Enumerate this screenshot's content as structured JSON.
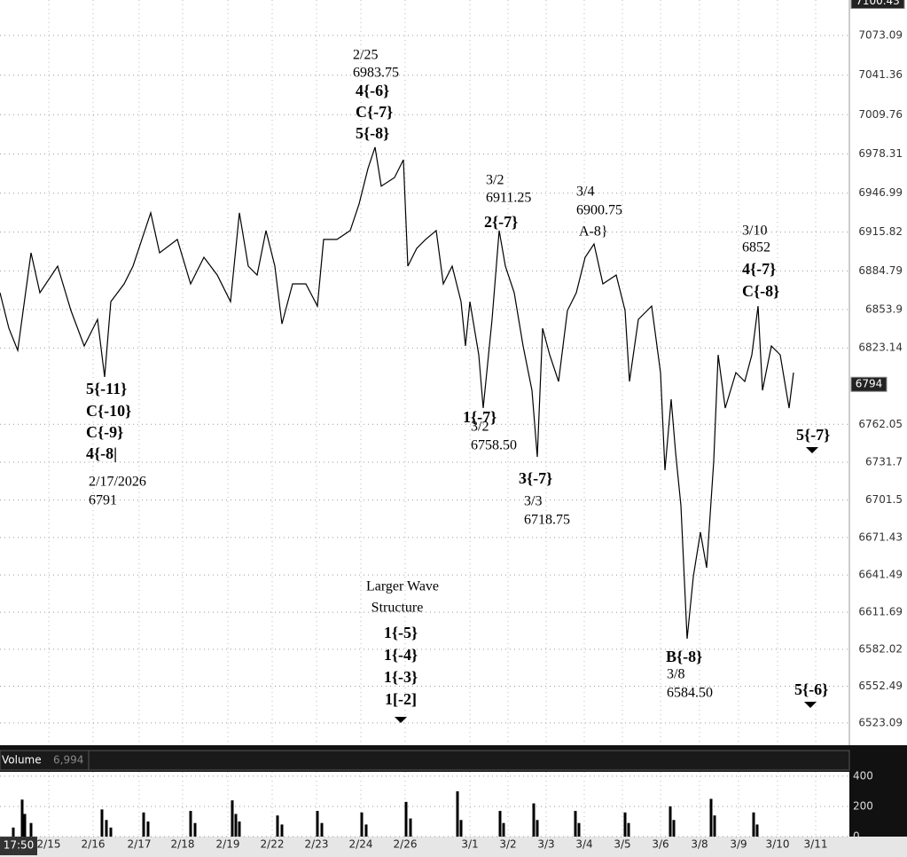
{
  "chart_data": [
    {
      "type": "line",
      "x": [
        0,
        1,
        2,
        3.5,
        4.5,
        6.5,
        8,
        9.5,
        11,
        11.8,
        12.5,
        14,
        15,
        16,
        17,
        18,
        20,
        21.5,
        23,
        24.5,
        26,
        27,
        28,
        29,
        30,
        31,
        31.8,
        33,
        34.5,
        35.8,
        36.5,
        38,
        39.5,
        40.5,
        41.5,
        42.3,
        43,
        44.5,
        45.5,
        46,
        47,
        48,
        49.2,
        50,
        51,
        52,
        52.5,
        53,
        54,
        54.5,
        55.5,
        56.3,
        57,
        58,
        59,
        60,
        60.6,
        61.2,
        62,
        63,
        64,
        65,
        66,
        67,
        68,
        69.5,
        70.5,
        71,
        72,
        73.5,
        74.5,
        75,
        75.7,
        76.2,
        76.8,
        77.5,
        78.2,
        79,
        79.7,
        80.5,
        81,
        81.8,
        83,
        84,
        84.8,
        85.5,
        86,
        87,
        88,
        89,
        89.5
      ],
      "values": [
        6867.3,
        6838.9,
        6821.2,
        6899.2,
        6867.3,
        6888.6,
        6853.1,
        6824.7,
        6846.0,
        6799.9,
        6860.2,
        6874.4,
        6888.6,
        6909.9,
        6931.2,
        6899.2,
        6909.9,
        6874.4,
        6895.7,
        6881.5,
        6860.2,
        6931.2,
        6888.6,
        6881.5,
        6917.0,
        6888.6,
        6842.4,
        6874.4,
        6874.4,
        6856.6,
        6909.9,
        6909.9,
        6917.0,
        6938.3,
        6966.6,
        6983.75,
        6952.5,
        6959.5,
        6973.7,
        6888.6,
        6902.8,
        6909.9,
        6917.0,
        6874.4,
        6888.6,
        6860.2,
        6824.7,
        6860.2,
        6817.6,
        6775.0,
        6846.0,
        6917.0,
        6888.6,
        6867.3,
        6824.7,
        6789.2,
        6736.0,
        6838.9,
        6817.6,
        6796.3,
        6853.1,
        6867.3,
        6895.7,
        6906.3,
        6874.4,
        6881.5,
        6853.1,
        6796.3,
        6846.0,
        6856.6,
        6803.4,
        6725.3,
        6782.1,
        6739.5,
        6697.0,
        6590.5,
        6640.2,
        6675.7,
        6647.3,
        6732.4,
        6817.6,
        6775.0,
        6803.4,
        6796.3,
        6817.6,
        6856.6,
        6789.2,
        6824.7,
        6817.6,
        6775.0,
        6803.4
      ],
      "color": "#000000",
      "xlim": [
        0,
        95.8
      ],
      "ylim": [
        6505.3,
        7101.5
      ],
      "yticks": [
        7073.09,
        7041.36,
        7009.76,
        6978.31,
        6946.99,
        6915.82,
        6884.79,
        6853.9,
        6823.14,
        6762.05,
        6731.7,
        6701.5,
        6671.43,
        6641.49,
        6611.69,
        6582.02,
        6552.49,
        6523.09
      ],
      "grid": true,
      "top_label": 7100.43,
      "last_price": 6794,
      "annotations": [
        [
          "2/25",
          "6983.75",
          "4{-6}",
          "C{-7}",
          "5{-8}"
        ],
        [
          "5{-11}",
          "C{-10}",
          "C{-9}",
          "4{-8|"
        ],
        [
          "2/17/2026",
          "6791"
        ],
        [
          "3/2",
          "6911.25",
          "2{-7}"
        ],
        [
          "3/4",
          "6900.75",
          "A-8}"
        ],
        [
          "3/10",
          "6852",
          "4{-7}",
          "C{-8}"
        ],
        [
          "1{-7}",
          "3/2",
          "6758.50"
        ],
        [
          "3{-7}",
          "3/3",
          "6718.75"
        ],
        [
          "B{-8}",
          "3/8",
          "6584.50"
        ],
        [
          "5{-7}"
        ],
        [
          "5{-6}"
        ],
        [
          "Larger Wave",
          "Structure",
          "1{-5}",
          "1{-4}",
          "1{-3}",
          "1[-2]"
        ]
      ]
    },
    {
      "type": "bar",
      "title": "Volume",
      "current": "6,994",
      "time_label": "17:50",
      "x": [
        1.5,
        2.5,
        2.8,
        3.5,
        11.5,
        12.0,
        12.5,
        16.2,
        16.7,
        21.5,
        22.0,
        26.2,
        26.6,
        27.0,
        31.3,
        31.8,
        35.8,
        36.3,
        40.8,
        41.3,
        45.8,
        46.3,
        51.6,
        52.0,
        56.4,
        56.8,
        60.2,
        60.6,
        64.9,
        65.3,
        70.5,
        70.9,
        75.6,
        76.0,
        80.2,
        80.6,
        85.0,
        85.4
      ],
      "values": [
        60,
        245,
        150,
        90,
        180,
        110,
        60,
        160,
        100,
        170,
        90,
        240,
        150,
        100,
        140,
        80,
        170,
        90,
        160,
        80,
        230,
        120,
        300,
        110,
        170,
        90,
        220,
        110,
        170,
        90,
        160,
        90,
        200,
        110,
        250,
        140,
        160,
        80
      ],
      "color": "#000000",
      "xlim": [
        0,
        95.8
      ],
      "ylim": [
        0,
        429
      ],
      "yticks": [
        400,
        200,
        0
      ],
      "xticks": [
        {
          "value": 5.5,
          "label": "2/15"
        },
        {
          "value": 10.5,
          "label": "2/16"
        },
        {
          "value": 15.7,
          "label": "2/17"
        },
        {
          "value": 20.6,
          "label": "2/18"
        },
        {
          "value": 25.7,
          "label": "2/19"
        },
        {
          "value": 30.7,
          "label": "2/22"
        },
        {
          "value": 35.7,
          "label": "2/23"
        },
        {
          "value": 40.7,
          "label": "2/24"
        },
        {
          "value": 45.7,
          "label": "2/26"
        },
        {
          "value": 53,
          "label": "3/1"
        },
        {
          "value": 57.3,
          "label": "3/2"
        },
        {
          "value": 61.6,
          "label": "3/3"
        },
        {
          "value": 65.9,
          "label": "3/4"
        },
        {
          "value": 70.2,
          "label": "3/5"
        },
        {
          "value": 74.5,
          "label": "3/6"
        },
        {
          "value": 78.9,
          "label": "3/8"
        },
        {
          "value": 83.3,
          "label": "3/9"
        },
        {
          "value": 87.7,
          "label": "3/10"
        },
        {
          "value": 92,
          "label": "3/11"
        }
      ],
      "grid": true
    }
  ]
}
